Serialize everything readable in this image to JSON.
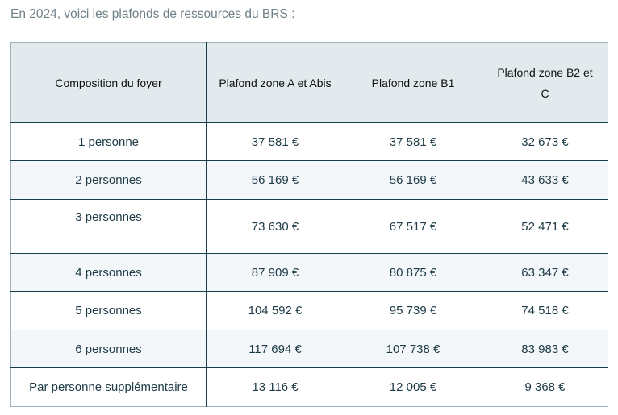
{
  "intro": "En 2024, voici les plafonds de ressources du BRS :",
  "table": {
    "headers": [
      "Composition du foyer",
      "Plafond zone A et Abis",
      "Plafond zone B1",
      "Plafond zone B2 et C"
    ],
    "rows": [
      [
        "1 personne",
        "37 581 €",
        "37 581 €",
        "32 673 €"
      ],
      [
        "2 personnes",
        "56 169 €",
        "56 169 €",
        "43 633 €"
      ],
      [
        "3 personnes",
        "73 630 €",
        "67 517 €",
        "52 471 €"
      ],
      [
        "4 personnes",
        "87 909 €",
        "80 875 €",
        "63 347 €"
      ],
      [
        "5 personnes",
        "104 592 €",
        "95 739 €",
        "74 518 €"
      ],
      [
        "6 personnes",
        "117 694 €",
        "107 738 €",
        "83 983 €"
      ],
      [
        "Par personne supplémentaire",
        "13 116 €",
        "12 005 €",
        "9 368 €"
      ]
    ]
  }
}
